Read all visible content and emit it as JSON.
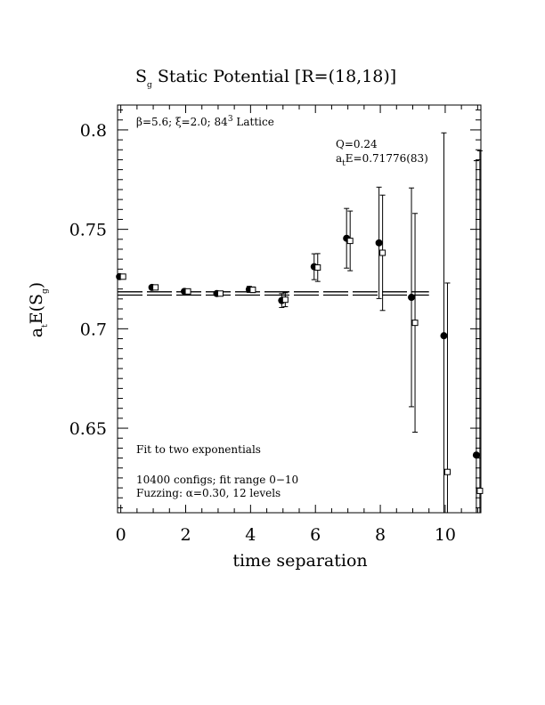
{
  "chart_data": {
    "type": "scatter",
    "title": {
      "main": "S",
      "sub": "g",
      "rest": " Static Potential [R=(18,18)]"
    },
    "xlabel": "time separation",
    "ylabel": {
      "a": "a",
      "a_sub": "t",
      "mid": "E(S",
      "s_sub": "g",
      "end": ")"
    },
    "xlim": [
      -0.1,
      11.1
    ],
    "ylim": [
      0.6075,
      0.8125
    ],
    "x_ticks": [
      0,
      2,
      4,
      6,
      8,
      10
    ],
    "y_ticks": [
      0.65,
      0.7,
      0.75,
      0.8
    ],
    "x_tick_labels": [
      "0",
      "2",
      "4",
      "6",
      "8",
      "10"
    ],
    "y_tick_labels": [
      "0.65",
      "0.7",
      "0.75",
      "0.8"
    ],
    "annotations": {
      "lattice": {
        "beta": "β=5.6; ",
        "xi": "ξ=2.0; ",
        "size": "84",
        "sup": "3",
        "tail": " Lattice"
      },
      "q": "Q=0.24",
      "fit_a": "a",
      "fit_sub": "t",
      "fit_rest": "E=0.71776(83)",
      "fit_type": "Fit to two exponentials",
      "configs": "10400 configs; fit range 0−10",
      "fuzzing": "Fuzzing: α=0.30, 12 levels"
    },
    "fit": {
      "value": 0.71776,
      "err": 0.00083,
      "x_range": [
        -0.1,
        9.5
      ]
    },
    "series": [
      {
        "marker": "filled-circle",
        "points": [
          {
            "x": 0,
            "y": 0.7262,
            "err": 0.0007
          },
          {
            "x": 1,
            "y": 0.7208,
            "err": 0.0008
          },
          {
            "x": 2,
            "y": 0.7188,
            "err": 0.0008
          },
          {
            "x": 3,
            "y": 0.7177,
            "err": 0.001
          },
          {
            "x": 4,
            "y": 0.7198,
            "err": 0.0015
          },
          {
            "x": 5,
            "y": 0.7142,
            "err": 0.0035
          },
          {
            "x": 6,
            "y": 0.7312,
            "err": 0.0065
          },
          {
            "x": 7,
            "y": 0.7455,
            "err": 0.015
          },
          {
            "x": 8,
            "y": 0.7432,
            "err": 0.028
          },
          {
            "x": 9,
            "y": 0.7158,
            "err": 0.055
          },
          {
            "x": 10,
            "y": 0.6965,
            "err": 0.102
          },
          {
            "x": 11,
            "y": 0.6365,
            "err": 0.148
          }
        ]
      },
      {
        "marker": "open-square",
        "points": [
          {
            "x": 0,
            "y": 0.7262,
            "err": 0.0007
          },
          {
            "x": 1,
            "y": 0.7208,
            "err": 0.0007
          },
          {
            "x": 2,
            "y": 0.7188,
            "err": 0.0008
          },
          {
            "x": 3,
            "y": 0.7177,
            "err": 0.001
          },
          {
            "x": 4,
            "y": 0.7196,
            "err": 0.0014
          },
          {
            "x": 5,
            "y": 0.7146,
            "err": 0.0035
          },
          {
            "x": 6,
            "y": 0.7308,
            "err": 0.007
          },
          {
            "x": 7,
            "y": 0.7442,
            "err": 0.015
          },
          {
            "x": 8,
            "y": 0.7382,
            "err": 0.029
          },
          {
            "x": 9,
            "y": 0.703,
            "err": 0.055
          },
          {
            "x": 10,
            "y": 0.628,
            "err": 0.095
          },
          {
            "x": 11,
            "y": 0.6185,
            "err": 0.171
          }
        ]
      }
    ]
  }
}
